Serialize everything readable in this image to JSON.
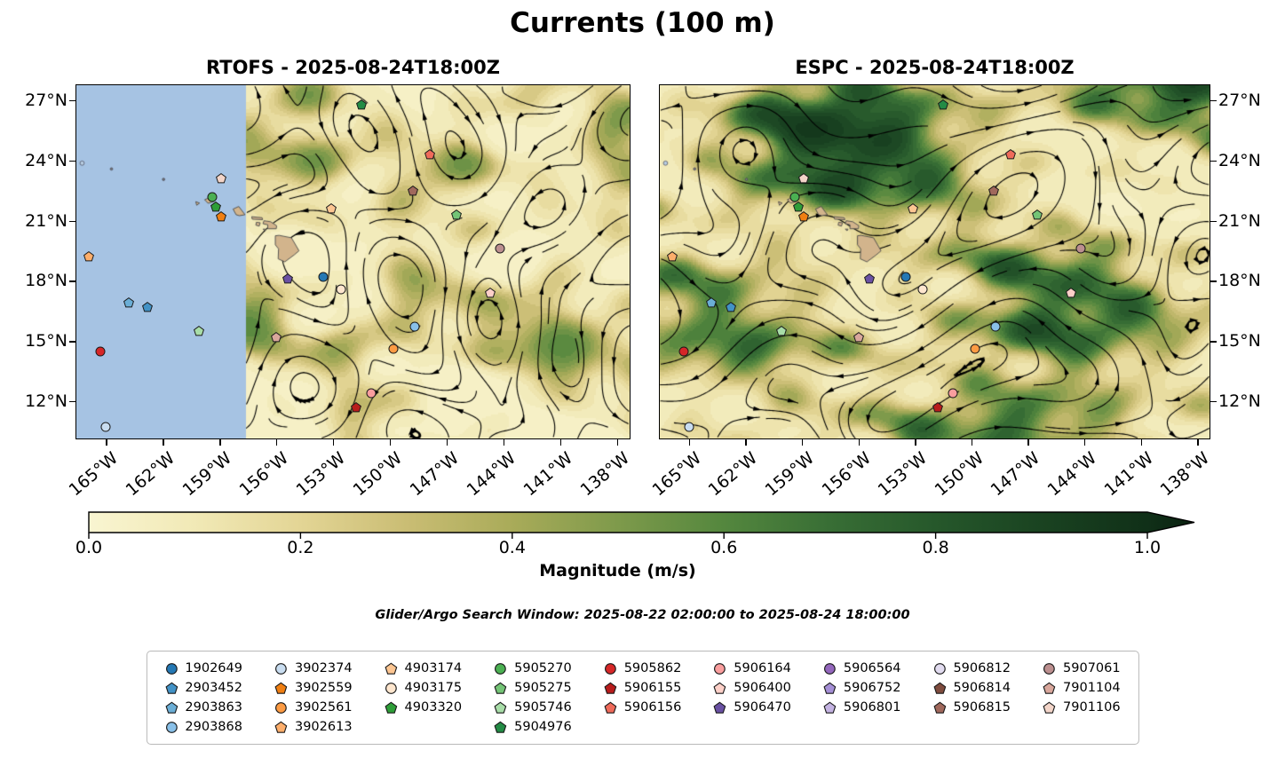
{
  "title": "Currents (100 m)",
  "search_window_note": "Glider/Argo Search Window: 2025-08-22 02:00:00 to 2025-08-24 18:00:00",
  "chart_data": {
    "type": "heatmap",
    "subtype": "geographic current-magnitude field with streamlines and float markers",
    "panels": [
      {
        "model": "RTOFS",
        "title": "RTOFS - 2025-08-24T18:00Z",
        "valid_time": "2025-08-24T18:00Z",
        "masked_no_data_region": {
          "west_of_lon": -157.6,
          "color": "#a6c3e3"
        }
      },
      {
        "model": "ESPC",
        "title": "ESPC - 2025-08-24T18:00Z",
        "valid_time": "2025-08-24T18:00Z",
        "masked_no_data_region": null
      }
    ],
    "axes": {
      "lon_range": [
        -166.6,
        -137.3
      ],
      "lat_range": [
        10.1,
        27.8
      ],
      "lon_ticks": [
        {
          "value": -165,
          "label": "165°W"
        },
        {
          "value": -162,
          "label": "162°W"
        },
        {
          "value": -159,
          "label": "159°W"
        },
        {
          "value": -156,
          "label": "156°W"
        },
        {
          "value": -153,
          "label": "153°W"
        },
        {
          "value": -150,
          "label": "150°W"
        },
        {
          "value": -147,
          "label": "147°W"
        },
        {
          "value": -144,
          "label": "144°W"
        },
        {
          "value": -141,
          "label": "141°W"
        },
        {
          "value": -138,
          "label": "138°W"
        }
      ],
      "lat_ticks": [
        {
          "value": 27,
          "label": "27°N"
        },
        {
          "value": 24,
          "label": "24°N"
        },
        {
          "value": 21,
          "label": "21°N"
        },
        {
          "value": 18,
          "label": "18°N"
        },
        {
          "value": 15,
          "label": "15°N"
        },
        {
          "value": 12,
          "label": "12°N"
        }
      ]
    },
    "colorbar": {
      "label": "Magnitude (m/s)",
      "range": [
        0.0,
        1.0
      ],
      "extend": "max",
      "ticks": [
        {
          "value": 0.0,
          "label": "0.0"
        },
        {
          "value": 0.2,
          "label": "0.2"
        },
        {
          "value": 0.4,
          "label": "0.4"
        },
        {
          "value": 0.6,
          "label": "0.6"
        },
        {
          "value": 0.8,
          "label": "0.8"
        },
        {
          "value": 1.0,
          "label": "1.0"
        }
      ],
      "stops": [
        {
          "v": 0.0,
          "c": "#f9f5d1"
        },
        {
          "v": 0.1,
          "c": "#f1e9b6"
        },
        {
          "v": 0.2,
          "c": "#e3d595"
        },
        {
          "v": 0.3,
          "c": "#cabd74"
        },
        {
          "v": 0.4,
          "c": "#a9ab59"
        },
        {
          "v": 0.5,
          "c": "#7e9a4b"
        },
        {
          "v": 0.6,
          "c": "#54873e"
        },
        {
          "v": 0.7,
          "c": "#386e35"
        },
        {
          "v": 0.8,
          "c": "#26582b"
        },
        {
          "v": 0.9,
          "c": "#1a4321"
        },
        {
          "v": 1.0,
          "c": "#103018"
        }
      ],
      "extend_color": "#0a2110"
    },
    "floats": {
      "1902649": {
        "color": "#2478b4",
        "shape": "circle"
      },
      "2903452": {
        "color": "#4292c6",
        "shape": "pentagon"
      },
      "2903863": {
        "color": "#6baed6",
        "shape": "pentagon"
      },
      "2903868": {
        "color": "#89c0e8",
        "shape": "circle"
      },
      "3902374": {
        "color": "#c9ddf0",
        "shape": "circle"
      },
      "3902559": {
        "color": "#f07f12",
        "shape": "pentagon"
      },
      "3902561": {
        "color": "#fd9b43",
        "shape": "circle"
      },
      "3902613": {
        "color": "#fdae6b",
        "shape": "pentagon"
      },
      "4903174": {
        "color": "#fdc692",
        "shape": "pentagon"
      },
      "4903175": {
        "color": "#fee6ce",
        "shape": "circle"
      },
      "4903320": {
        "color": "#2e9e38",
        "shape": "pentagon"
      },
      "5905270": {
        "color": "#4bb052",
        "shape": "circle"
      },
      "5905275": {
        "color": "#74c476",
        "shape": "pentagon"
      },
      "5905746": {
        "color": "#a8dda8",
        "shape": "pentagon"
      },
      "5904976": {
        "color": "#238b45",
        "shape": "pentagon"
      },
      "5905862": {
        "color": "#d62728",
        "shape": "circle"
      },
      "5906155": {
        "color": "#b81c1c",
        "shape": "pentagon"
      },
      "5906156": {
        "color": "#ef6a5a",
        "shape": "pentagon"
      },
      "5906164": {
        "color": "#fa9e9e",
        "shape": "circle"
      },
      "5906400": {
        "color": "#fdd0c8",
        "shape": "pentagon"
      },
      "5906470": {
        "color": "#6a51a3",
        "shape": "pentagon"
      },
      "5906564": {
        "color": "#9467bd",
        "shape": "circle"
      },
      "5906752": {
        "color": "#a58fd6",
        "shape": "pentagon"
      },
      "5906801": {
        "color": "#c4b3e2",
        "shape": "pentagon"
      },
      "5906812": {
        "color": "#e2dcf0",
        "shape": "circle"
      },
      "5906814": {
        "color": "#7f4c3e",
        "shape": "pentagon"
      },
      "5906815": {
        "color": "#a0685c",
        "shape": "pentagon"
      },
      "5907061": {
        "color": "#bc8f8f",
        "shape": "circle"
      },
      "7901104": {
        "color": "#d9a79c",
        "shape": "pentagon"
      },
      "7901106": {
        "color": "#f3d5c9",
        "shape": "pentagon"
      }
    },
    "legend_columns": [
      [
        "1902649",
        "2903452",
        "2903863",
        "2903868"
      ],
      [
        "3902374",
        "3902559",
        "3902561",
        "3902613"
      ],
      [
        "4903174",
        "4903175",
        "4903320"
      ],
      [
        "5905270",
        "5905275",
        "5905746",
        "5904976"
      ],
      [
        "5905862",
        "5906155",
        "5906156"
      ],
      [
        "5906164",
        "5906400",
        "5906470"
      ],
      [
        "5906564",
        "5906752",
        "5906801"
      ],
      [
        "5906812",
        "5906814",
        "5906815"
      ],
      [
        "5907061",
        "7901104",
        "7901106"
      ]
    ],
    "markers": [
      {
        "id": "5904976",
        "lon": -151.5,
        "lat": 26.8
      },
      {
        "id": "5906156",
        "lon": -147.9,
        "lat": 24.3
      },
      {
        "id": "7901106",
        "lon": -158.9,
        "lat": 23.1
      },
      {
        "id": "5906815",
        "lon": -148.8,
        "lat": 22.5
      },
      {
        "id": "5905270",
        "lon": -159.4,
        "lat": 22.2
      },
      {
        "id": "4903320",
        "lon": -159.2,
        "lat": 21.7
      },
      {
        "id": "3902559",
        "lon": -158.9,
        "lat": 21.2
      },
      {
        "id": "4903174",
        "lon": -153.1,
        "lat": 21.6
      },
      {
        "id": "5905275",
        "lon": -146.5,
        "lat": 21.3
      },
      {
        "id": "5907061",
        "lon": -144.2,
        "lat": 19.6
      },
      {
        "id": "3902613",
        "lon": -165.9,
        "lat": 19.2
      },
      {
        "id": "5906470",
        "lon": -155.4,
        "lat": 18.1
      },
      {
        "id": "1902649",
        "lon": -153.5,
        "lat": 18.2
      },
      {
        "id": "4903175",
        "lon": -152.6,
        "lat": 17.6
      },
      {
        "id": "5906400",
        "lon": -144.7,
        "lat": 17.4
      },
      {
        "id": "2903863",
        "lon": -163.8,
        "lat": 16.9
      },
      {
        "id": "2903452",
        "lon": -162.8,
        "lat": 16.7
      },
      {
        "id": "5905746",
        "lon": -160.1,
        "lat": 15.5
      },
      {
        "id": "7901104",
        "lon": -156.0,
        "lat": 15.2
      },
      {
        "id": "2903868",
        "lon": -148.7,
        "lat": 15.7
      },
      {
        "id": "3902561",
        "lon": -149.8,
        "lat": 14.6
      },
      {
        "id": "5905862",
        "lon": -165.3,
        "lat": 14.5
      },
      {
        "id": "5906164",
        "lon": -151.0,
        "lat": 12.4
      },
      {
        "id": "5906155",
        "lon": -151.8,
        "lat": 11.7
      },
      {
        "id": "3902374",
        "lon": -165.0,
        "lat": 10.7
      }
    ],
    "map": {
      "land_color": "#d2b48c",
      "mask_color": "#a6c3e3",
      "islands": [
        [
          [
            -156.05,
            20.25
          ],
          [
            -155.85,
            20.27
          ],
          [
            -155.2,
            20.15
          ],
          [
            -154.8,
            19.5
          ],
          [
            -155.05,
            19.3
          ],
          [
            -155.55,
            18.95
          ],
          [
            -155.9,
            19.1
          ],
          [
            -155.88,
            19.6
          ],
          [
            -156.05,
            19.8
          ]
        ],
        [
          [
            -156.65,
            21.0
          ],
          [
            -156.3,
            20.95
          ],
          [
            -155.98,
            20.75
          ],
          [
            -156.0,
            20.6
          ],
          [
            -156.45,
            20.6
          ],
          [
            -156.45,
            20.8
          ],
          [
            -156.7,
            20.85
          ]
        ],
        [
          [
            -156.7,
            20.58
          ],
          [
            -156.55,
            20.58
          ],
          [
            -156.6,
            20.5
          ]
        ],
        [
          [
            -157.05,
            20.92
          ],
          [
            -156.85,
            20.9
          ],
          [
            -156.9,
            20.73
          ],
          [
            -157.08,
            20.78
          ]
        ],
        [
          [
            -157.3,
            21.2
          ],
          [
            -156.75,
            21.15
          ],
          [
            -156.72,
            21.05
          ],
          [
            -157.27,
            21.08
          ]
        ],
        [
          [
            -158.28,
            21.58
          ],
          [
            -157.98,
            21.71
          ],
          [
            -157.65,
            21.3
          ],
          [
            -157.95,
            21.25
          ],
          [
            -158.12,
            21.3
          ]
        ],
        [
          [
            -159.78,
            22.05
          ],
          [
            -159.35,
            22.22
          ],
          [
            -159.3,
            21.95
          ],
          [
            -159.6,
            21.87
          ]
        ],
        [
          [
            -160.25,
            21.95
          ],
          [
            -160.05,
            21.88
          ],
          [
            -160.2,
            21.77
          ]
        ]
      ],
      "islets": [
        [
          -166.25,
          23.87
        ],
        [
          -164.7,
          23.58
        ],
        [
          -161.95,
          23.06
        ]
      ]
    }
  }
}
